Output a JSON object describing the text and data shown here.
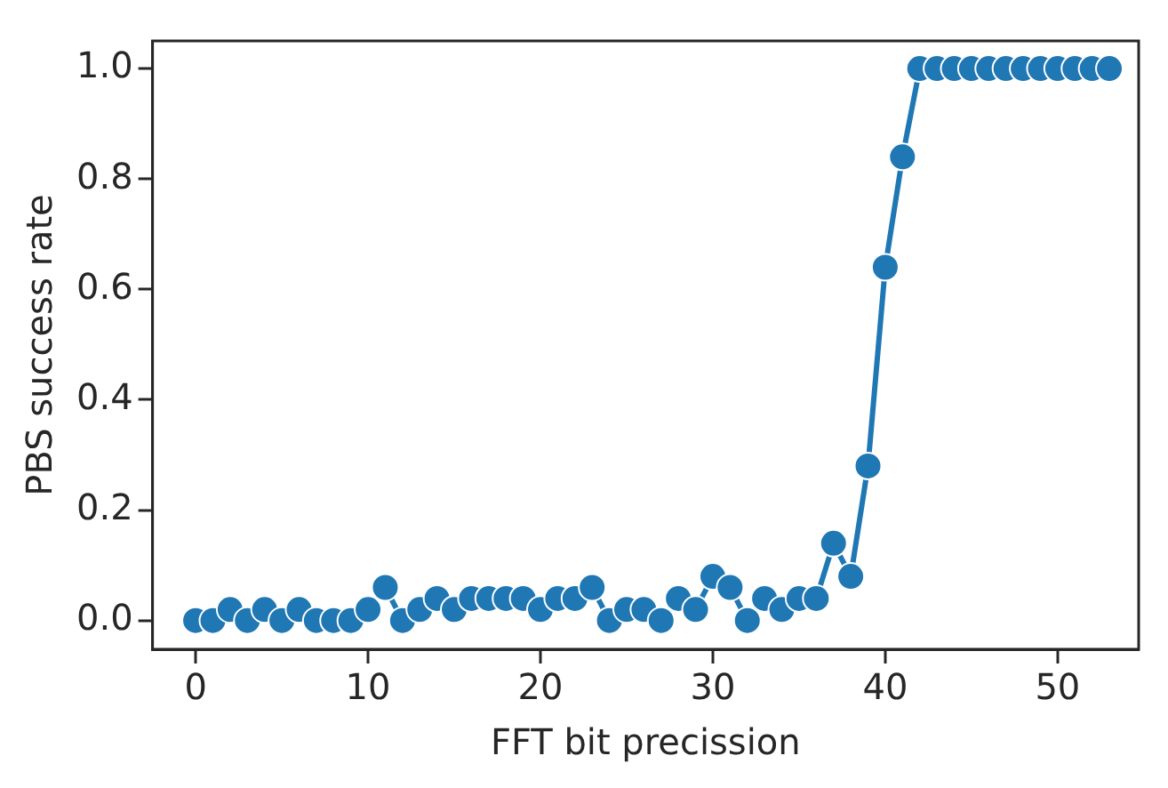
{
  "chart_data": {
    "type": "line",
    "xlabel": "FFT bit precission",
    "ylabel": "PBS success rate",
    "x": [
      0,
      1,
      2,
      3,
      4,
      5,
      6,
      7,
      8,
      9,
      10,
      11,
      12,
      13,
      14,
      15,
      16,
      17,
      18,
      19,
      20,
      21,
      22,
      23,
      24,
      25,
      26,
      27,
      28,
      29,
      30,
      31,
      32,
      33,
      34,
      35,
      36,
      37,
      38,
      39,
      40,
      41,
      42,
      43,
      44,
      45,
      46,
      47,
      48,
      49,
      50,
      51,
      52,
      53
    ],
    "series": [
      {
        "color": "#1f77b4",
        "values": [
          0,
          0,
          0.02,
          0,
          0.02,
          0,
          0.02,
          0,
          0,
          0,
          0.02,
          0.06,
          0,
          0.02,
          0.04,
          0.02,
          0.04,
          0.04,
          0.04,
          0.04,
          0.02,
          0.04,
          0.04,
          0.06,
          0,
          0.02,
          0.02,
          0,
          0.04,
          0.02,
          0.08,
          0.06,
          0,
          0.04,
          0.02,
          0.04,
          0.04,
          0.14,
          0.08,
          0.28,
          0.64,
          0.84,
          1,
          1,
          1,
          1,
          1,
          1,
          1,
          1,
          1,
          1,
          1,
          1
        ]
      }
    ],
    "xlim": [
      -2.5,
      54.7
    ],
    "xticks": [
      0,
      10,
      20,
      30,
      40,
      50
    ],
    "ylim": [
      -0.052,
      1.05
    ],
    "yticks": [
      {
        "value": 0,
        "label": "0.0"
      },
      {
        "value": 0.2,
        "label": "0.2"
      },
      {
        "value": 0.4,
        "label": "0.4"
      },
      {
        "value": 0.6,
        "label": "0.6"
      },
      {
        "value": 0.8,
        "label": "0.8"
      },
      {
        "value": 1,
        "label": "1.0"
      }
    ],
    "grid": false,
    "legend": false,
    "marker": "circle",
    "line_style": "solid"
  }
}
